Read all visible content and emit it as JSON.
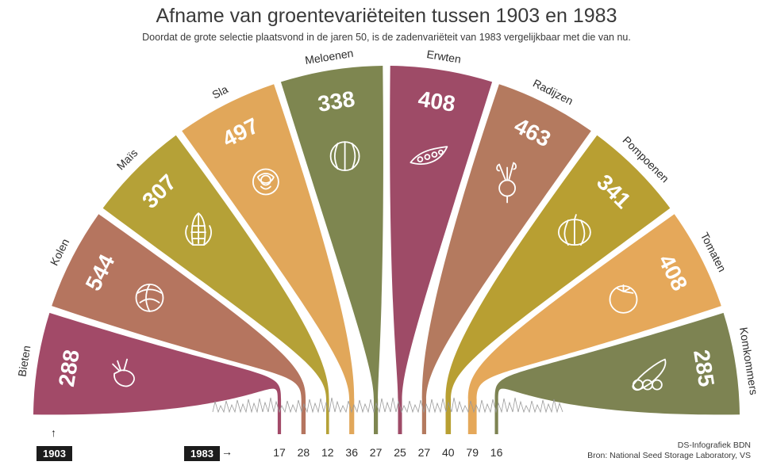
{
  "title": "Afname van groentevariëteiten tussen 1903 en 1983",
  "subtitle": "Doordat de grote selectie plaatsvond in de jaren 50, is de zadenvariëteit van 1983 vergelijkbaar met die van nu.",
  "legend": {
    "year_start": "1903",
    "year_end": "1983"
  },
  "credit": {
    "line1": "DS-Infografiek BDN",
    "line2": "Bron: National Seed Storage Laboratory, VS"
  },
  "chart_data": {
    "type": "radial-fan",
    "categories": [
      "Bieten",
      "Kolen",
      "Maïs",
      "Sla",
      "Meloenen",
      "Erwten",
      "Radijzen",
      "Pompoenen",
      "Tomaten",
      "Komkommers"
    ],
    "series": [
      {
        "name": "1903",
        "values": [
          288,
          544,
          307,
          497,
          338,
          408,
          463,
          341,
          408,
          285
        ]
      },
      {
        "name": "1983",
        "values": [
          17,
          28,
          12,
          36,
          27,
          25,
          27,
          40,
          79,
          16
        ]
      }
    ],
    "icons": [
      "beet-icon",
      "cabbage-icon",
      "corn-icon",
      "lettuce-icon",
      "melon-icon",
      "pea-pod-icon",
      "radish-icon",
      "pumpkin-icon",
      "tomato-icon",
      "cucumber-icon"
    ],
    "colors": [
      "#a24a68",
      "#b5755f",
      "#b5a137",
      "#e1a75a",
      "#7e8650",
      "#9e4b67",
      "#b47a5f",
      "#b89f32",
      "#e5a85a",
      "#7d8352"
    ]
  }
}
